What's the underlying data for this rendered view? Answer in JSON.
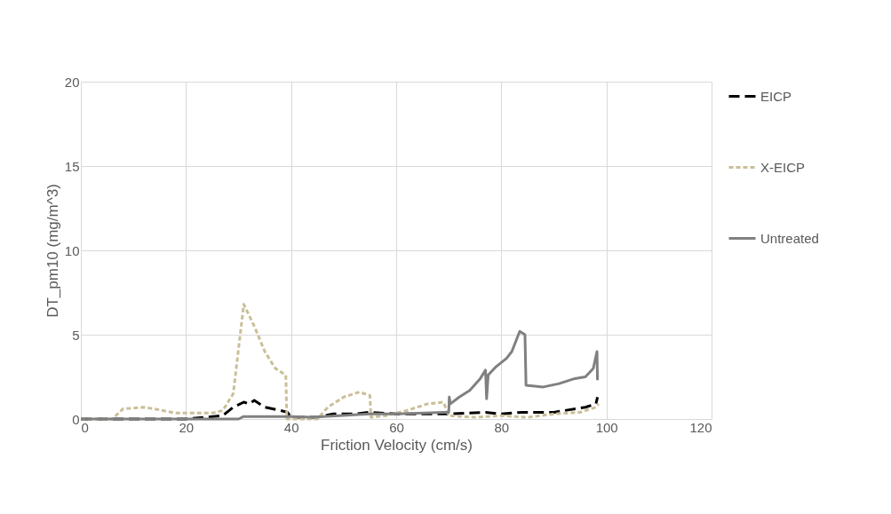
{
  "chart_data": {
    "type": "line",
    "xlabel": "Friction Velocity (cm/s)",
    "ylabel": "DT_pm10 (mg/m^3)",
    "xlim": [
      0,
      120
    ],
    "xticks": [
      0,
      20,
      40,
      60,
      80,
      100,
      120
    ],
    "ylim": [
      0,
      20
    ],
    "yticks": [
      0,
      5,
      10,
      15,
      20
    ],
    "grid": true,
    "legend": "right",
    "series": [
      {
        "name": "EICP",
        "color": "#000000",
        "line_style": "dashed",
        "x": [
          0,
          10,
          20,
          27,
          29,
          31,
          32,
          33,
          35,
          38,
          39.3,
          40,
          45,
          48,
          52,
          55,
          60,
          70,
          77,
          80,
          84,
          90,
          96,
          98,
          98.3
        ],
        "values": [
          0,
          0,
          0,
          0.2,
          0.7,
          1.0,
          0.9,
          1.1,
          0.7,
          0.5,
          0.4,
          0.1,
          0.1,
          0.3,
          0.3,
          0.4,
          0.3,
          0.3,
          0.4,
          0.3,
          0.4,
          0.4,
          0.7,
          0.9,
          1.3
        ]
      },
      {
        "name": "X-EICP",
        "color": "#c9bf98",
        "line_style": "dotted",
        "x": [
          0,
          6,
          8,
          12,
          14,
          18,
          25,
          27,
          29,
          31,
          33,
          35,
          37,
          39,
          39.2,
          45,
          47,
          50,
          53,
          55,
          55.2,
          58,
          62,
          66,
          69,
          70,
          75,
          80,
          85,
          90,
          95,
          98,
          98.5
        ],
        "values": [
          0,
          0,
          0.6,
          0.7,
          0.6,
          0.35,
          0.35,
          0.5,
          1.5,
          6.8,
          5.5,
          4.0,
          3.0,
          2.6,
          0,
          0,
          0.7,
          1.3,
          1.6,
          1.4,
          0.1,
          0.2,
          0.5,
          0.9,
          1.0,
          0.2,
          0.1,
          0.2,
          0.1,
          0.3,
          0.4,
          0.7,
          0.9
        ]
      },
      {
        "name": "Untreated",
        "color": "#808080",
        "line_style": "solid",
        "x": [
          0,
          30,
          31,
          40,
          44,
          55,
          60,
          69,
          70,
          70.1,
          70.3,
          72,
          74,
          76,
          77,
          77.2,
          77.5,
          79,
          81,
          82,
          83.5,
          84.5,
          84.7,
          88,
          91,
          94,
          96,
          97.5,
          98.2,
          98.3
        ],
        "values": [
          0,
          0,
          0.15,
          0.15,
          0.1,
          0.3,
          0.3,
          0.4,
          0.4,
          1.3,
          0.9,
          1.3,
          1.7,
          2.4,
          2.9,
          1.2,
          2.6,
          3.1,
          3.6,
          4.0,
          5.2,
          5.0,
          2.0,
          1.9,
          2.1,
          2.4,
          2.5,
          3.0,
          4.0,
          2.3
        ]
      }
    ]
  }
}
